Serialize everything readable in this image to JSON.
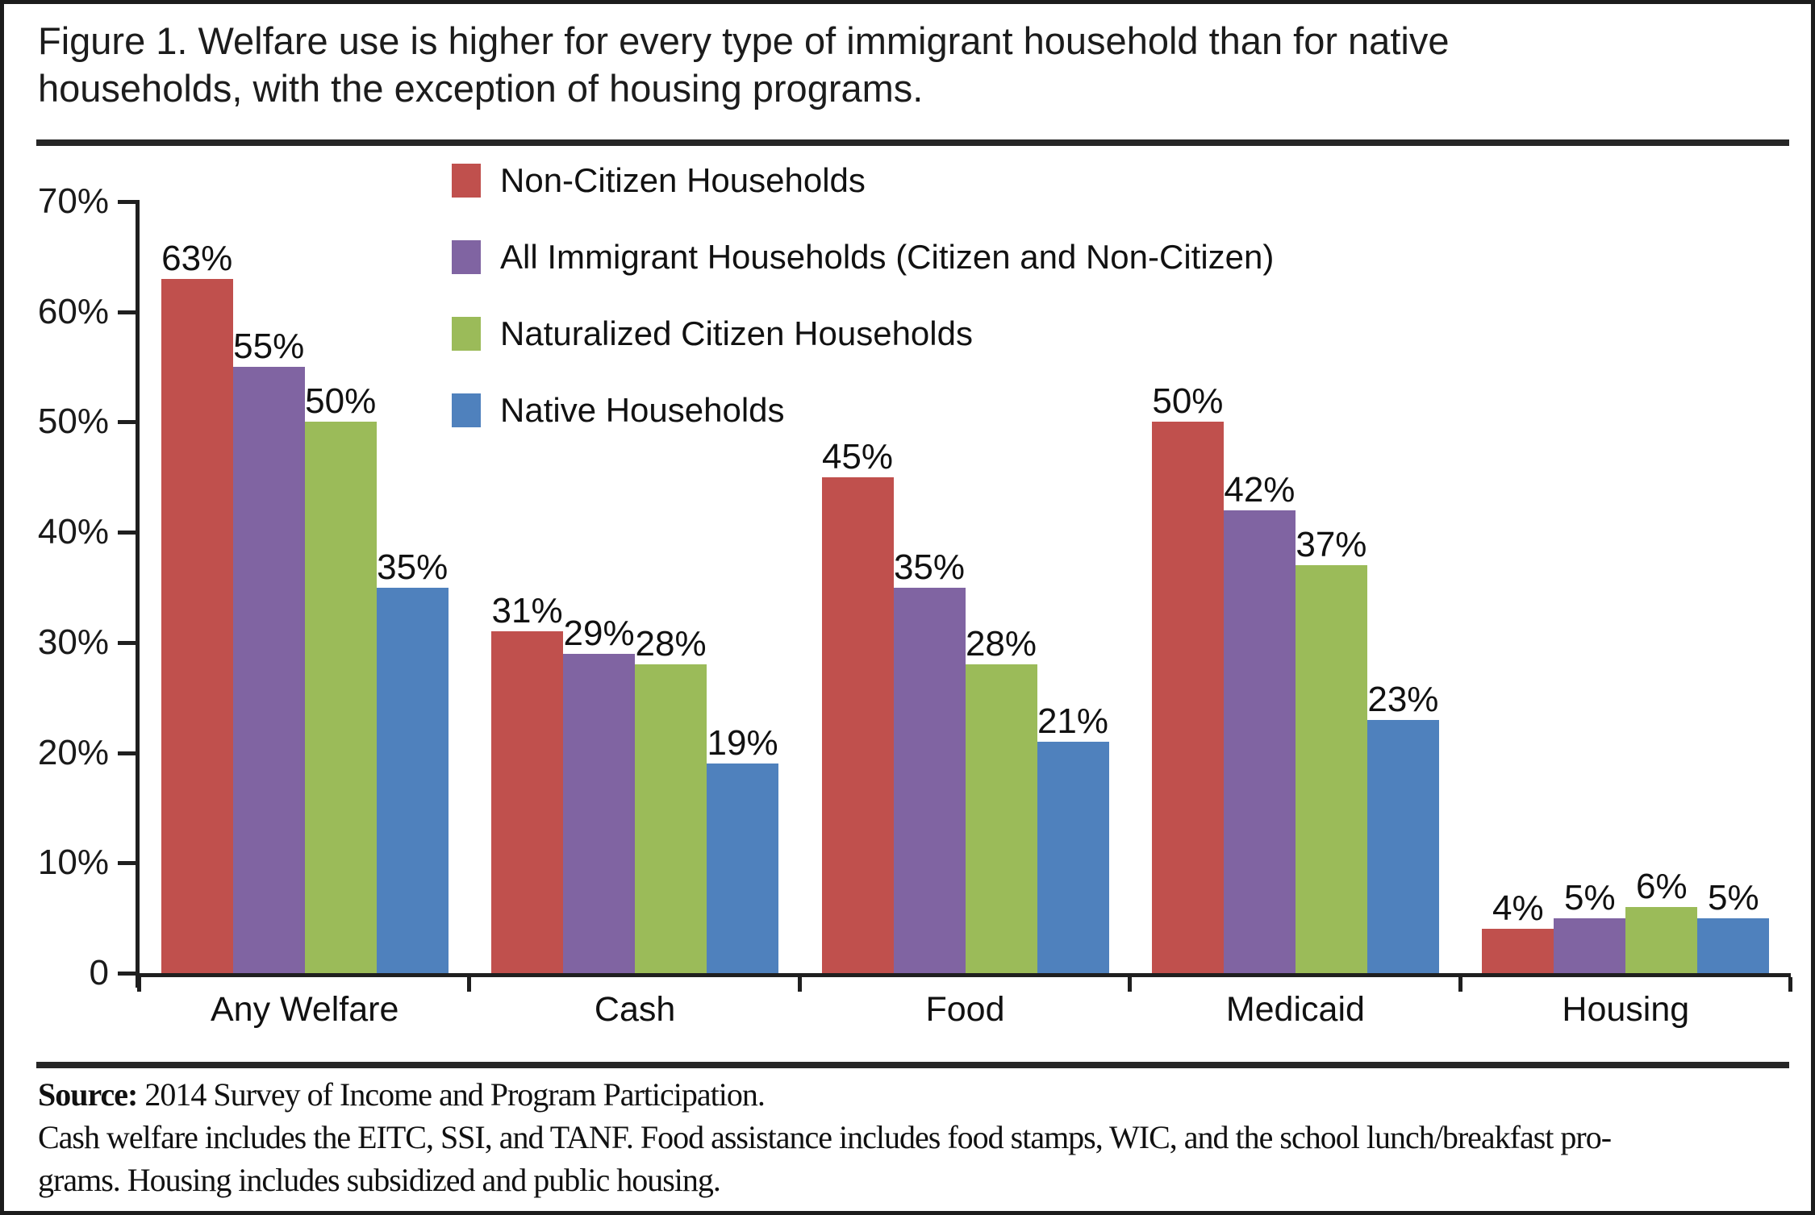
{
  "title": {
    "line1": "Figure 1. Welfare use is higher for every type of immigrant household than for native",
    "line2": "households, with the exception of housing programs."
  },
  "chart_data": {
    "type": "bar",
    "title": "Figure 1. Welfare use is higher for every type of immigrant household than for native households, with the exception of housing programs.",
    "categories": [
      "Any Welfare",
      "Cash",
      "Food",
      "Medicaid",
      "Housing"
    ],
    "series": [
      {
        "name": "Non-Citizen Households",
        "color": "#C0504D",
        "values": [
          63,
          31,
          45,
          50,
          4
        ]
      },
      {
        "name": "All Immigrant Households (Citizen and Non-Citizen)",
        "color": "#8064A2",
        "values": [
          55,
          29,
          35,
          42,
          5
        ]
      },
      {
        "name": "Naturalized Citizen Households",
        "color": "#9BBB59",
        "values": [
          50,
          28,
          28,
          37,
          6
        ]
      },
      {
        "name": "Native Households",
        "color": "#4F81BD",
        "values": [
          35,
          19,
          21,
          23,
          5
        ]
      }
    ],
    "value_suffix": "%",
    "ylim": [
      0,
      70
    ],
    "yticks": [
      {
        "value": 70,
        "label": "70%"
      },
      {
        "value": 60,
        "label": "60%"
      },
      {
        "value": 50,
        "label": "50%"
      },
      {
        "value": 40,
        "label": "40%"
      },
      {
        "value": 30,
        "label": "30%"
      },
      {
        "value": 20,
        "label": "20%"
      },
      {
        "value": 10,
        "label": "10%"
      },
      {
        "value": 0,
        "label": "0"
      }
    ],
    "xlabel": "",
    "ylabel": "",
    "grid": false,
    "legend_position": "inside-top-left",
    "axis_color": "#1f1f1f"
  },
  "footer": {
    "source_label": "Source:",
    "source_text": " 2014 Survey of Income and Program Participation.",
    "note_lines": [
      "Cash welfare includes the EITC, SSI, and TANF. Food assistance includes food stamps, WIC, and the school lunch/breakfast pro-",
      "grams. Housing includes subsidized and public housing."
    ]
  }
}
